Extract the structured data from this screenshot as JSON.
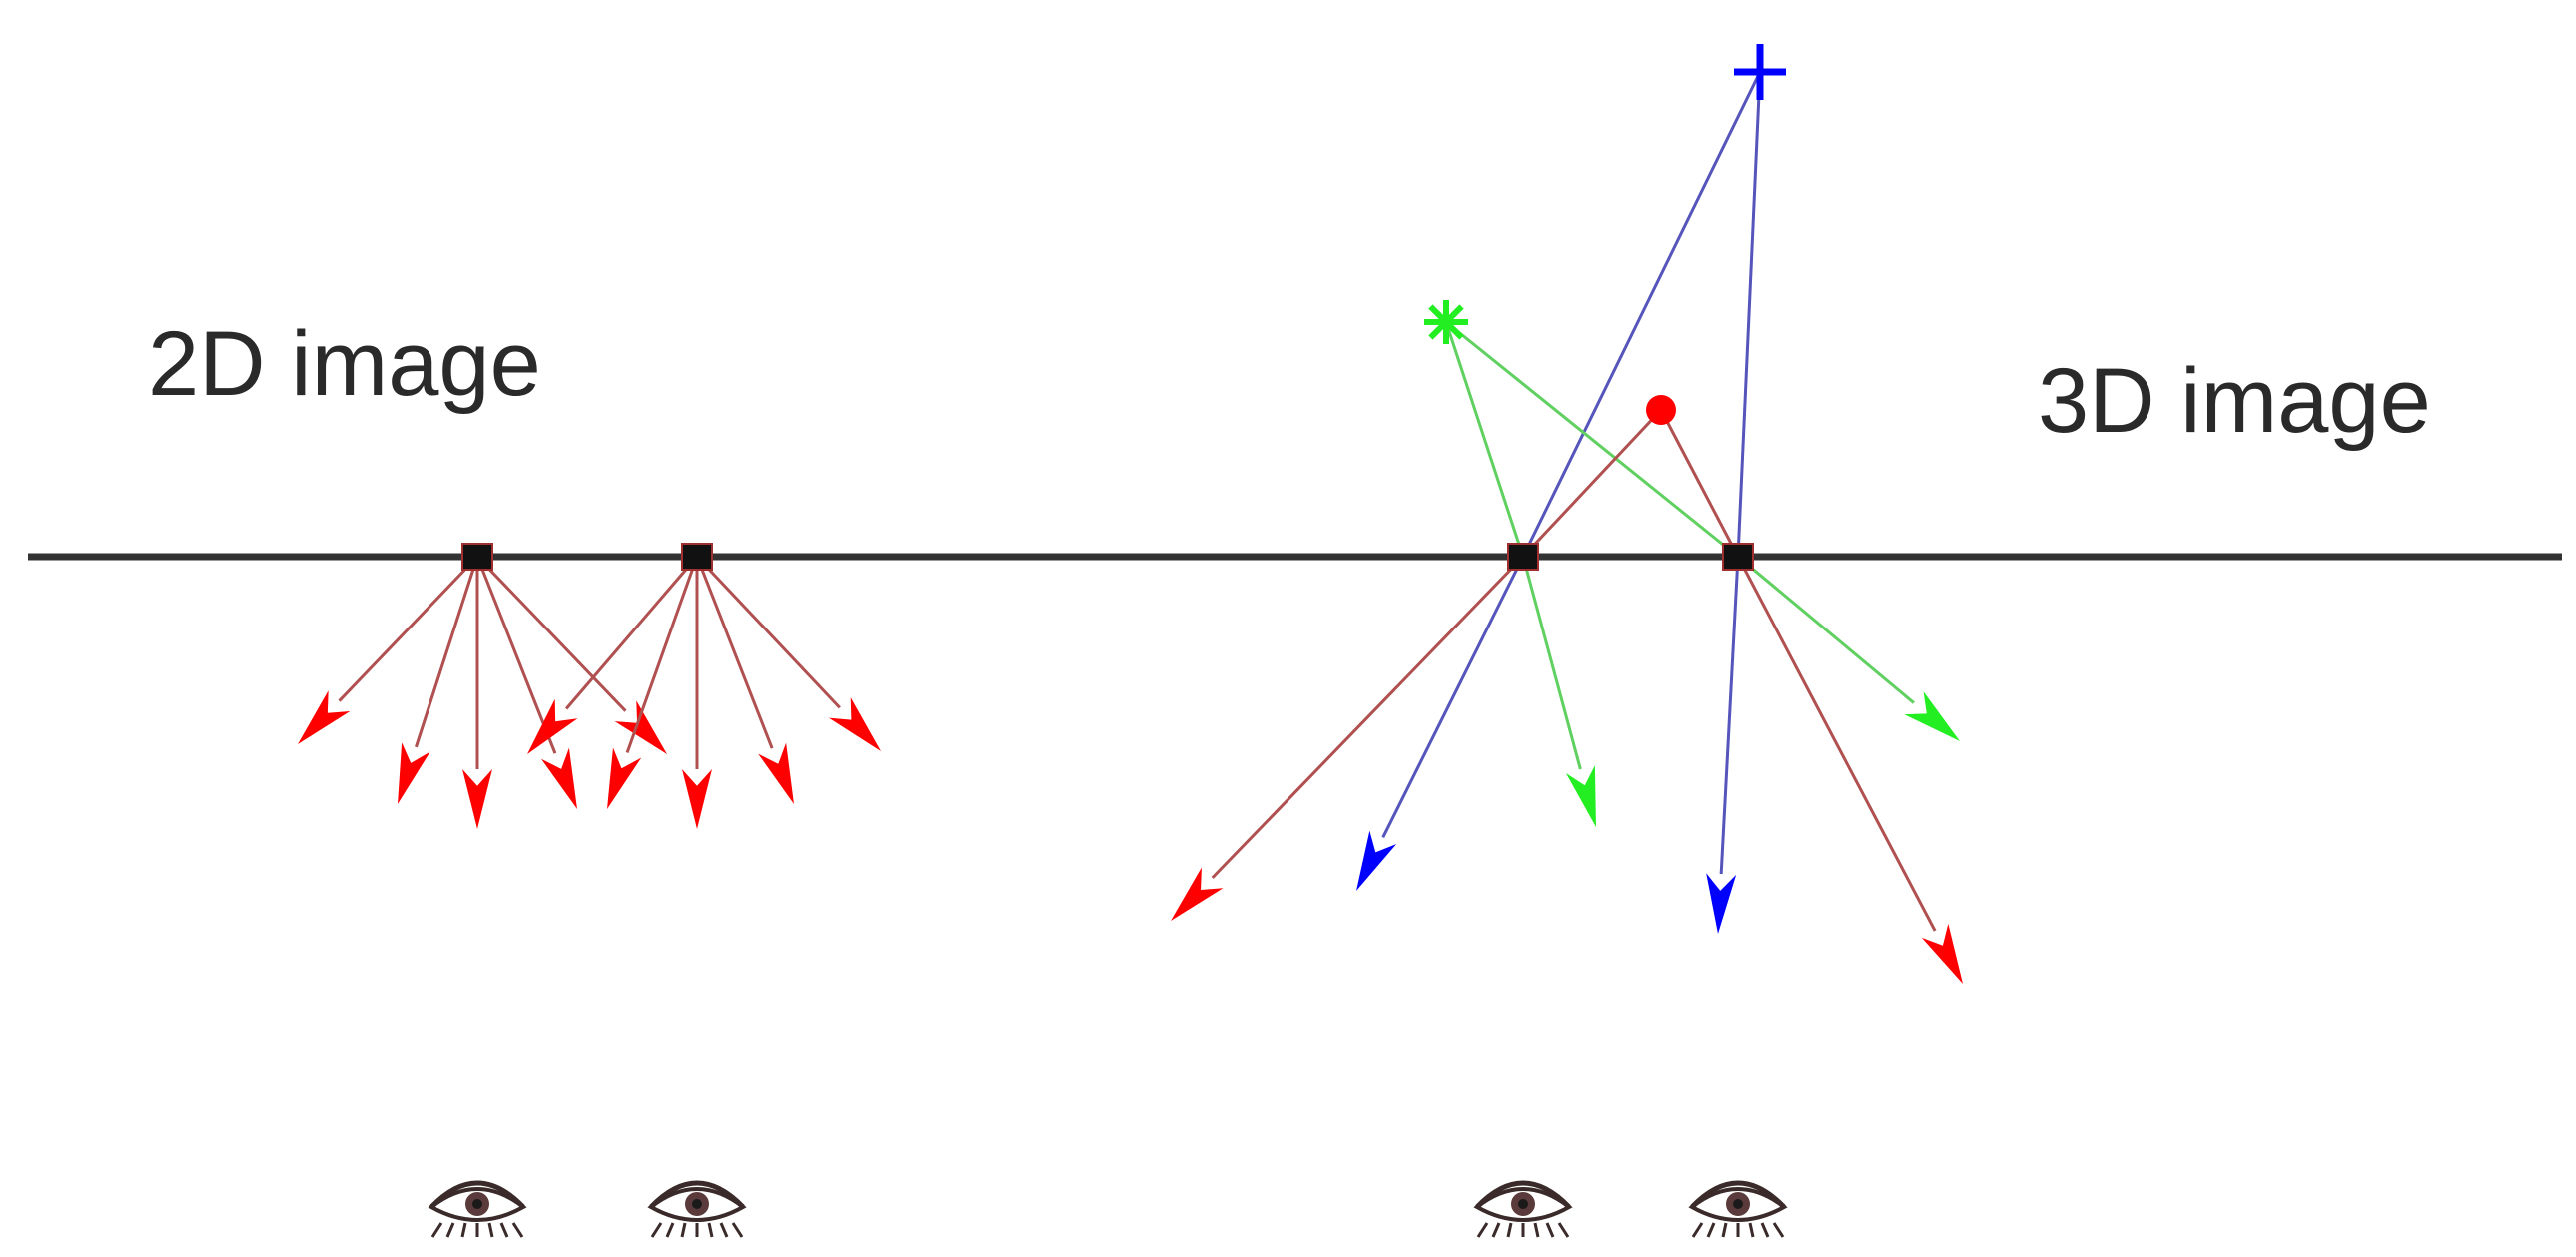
{
  "labels": {
    "left": "2D image",
    "right": "3D image"
  },
  "colors": {
    "background": "#ffffff",
    "image_plane": "#333333",
    "pixel": "#111111",
    "ray_red": "#b05050",
    "arrow_red": "#ff0000",
    "ray_green": "#60d060",
    "arrow_green": "#22ee22",
    "ray_blue": "#5555bb",
    "arrow_blue": "#0000ff",
    "eye": "#3a2a2a"
  },
  "symbols": {
    "blue_point": "plus-marker",
    "green_point": "asterisk-marker",
    "red_point": "dot-marker",
    "viewer": "eye-icon"
  }
}
